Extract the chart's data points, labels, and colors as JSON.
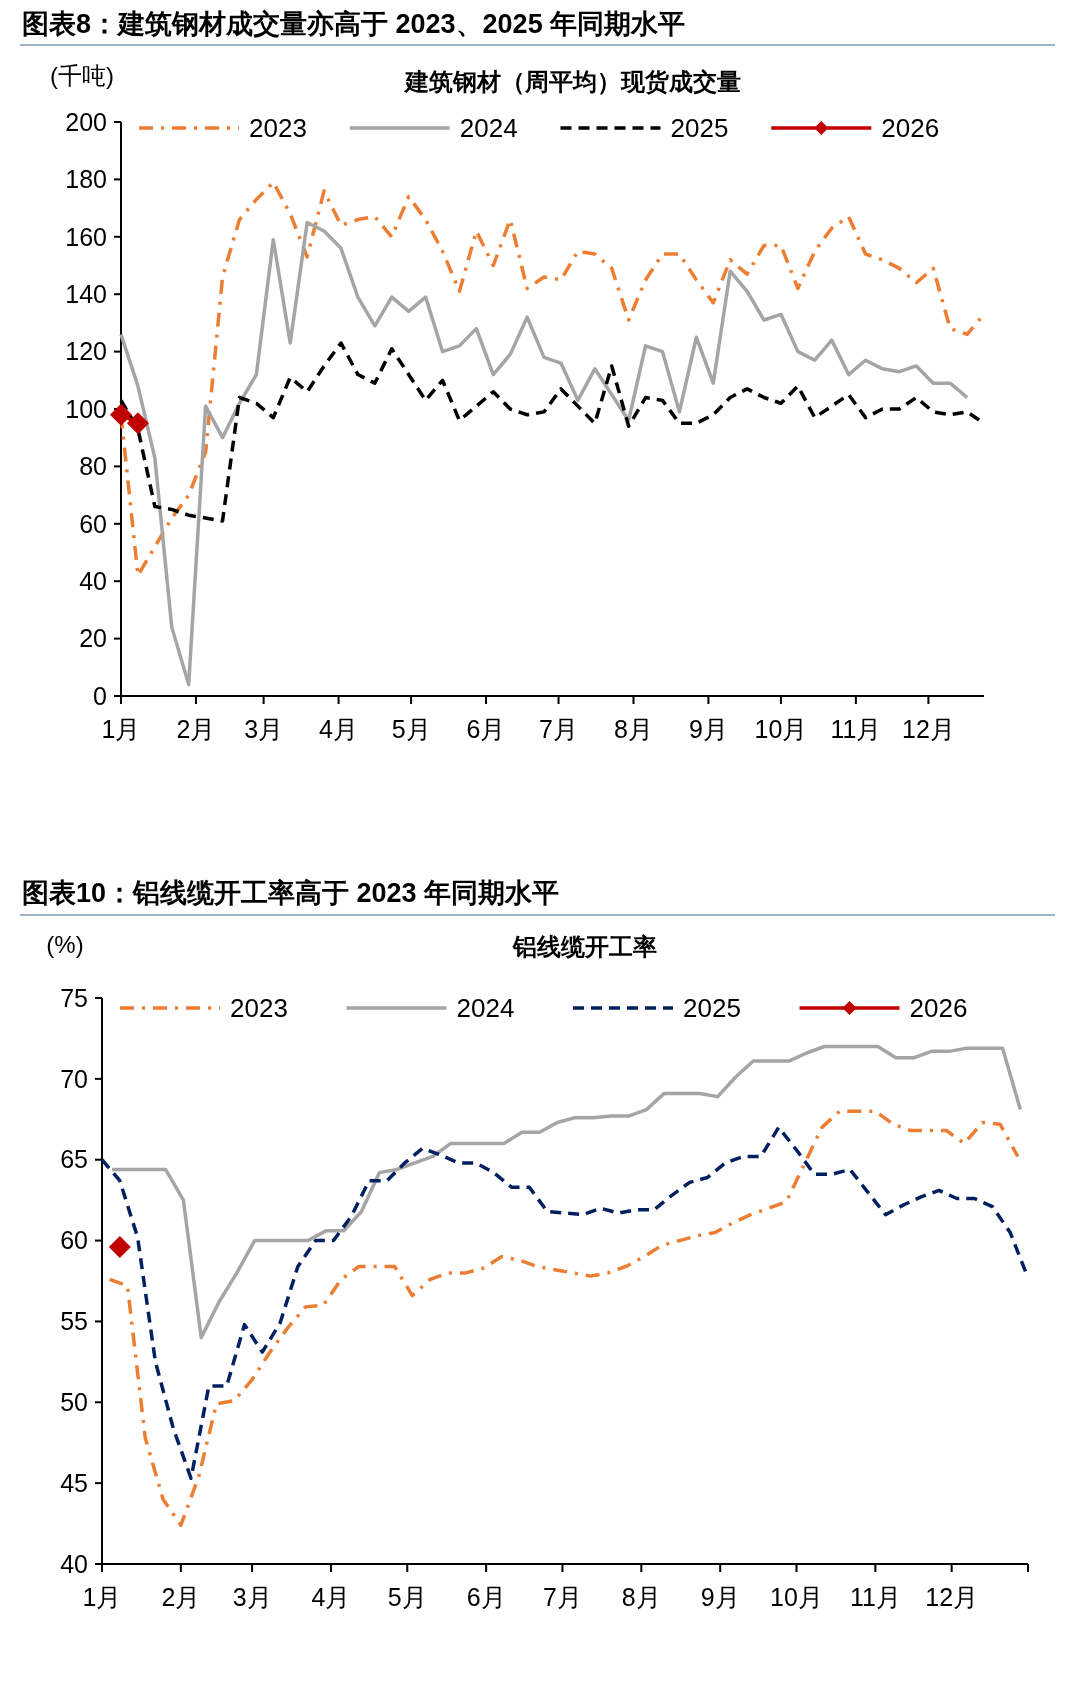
{
  "chart_data": [
    {
      "type": "line",
      "title": "图表8：建筑钢材成交量亦高于 2023、2025 年同期水平",
      "subtitle": "建筑钢材（周平均）现货成交量",
      "ylabel": "(千吨)",
      "x": [
        "--01-01",
        "--01-08",
        "--01-15",
        "--01-22",
        "--01-29",
        "--02-05",
        "--02-12",
        "--02-19",
        "--02-26",
        "--03-05",
        "--03-12",
        "--03-19",
        "--03-26",
        "--04-02",
        "--04-09",
        "--04-16",
        "--04-23",
        "--04-30",
        "--05-07",
        "--05-14",
        "--05-21",
        "--05-28",
        "--06-04",
        "--06-11",
        "--06-18",
        "--06-25",
        "--07-02",
        "--07-09",
        "--07-16",
        "--07-23",
        "--07-30",
        "--08-06",
        "--08-13",
        "--08-20",
        "--08-27",
        "--09-03",
        "--09-10",
        "--09-17",
        "--09-24",
        "--10-01",
        "--10-08",
        "--10-15",
        "--10-22",
        "--10-29",
        "--11-05",
        "--11-12",
        "--11-19",
        "--11-26",
        "--12-03",
        "--12-10",
        "--12-17",
        "--12-24"
      ],
      "xlim": [
        "--01-01",
        "--12-24"
      ],
      "xticks": [
        {
          "value": "--01-01",
          "label": "1月"
        },
        {
          "value": "--02-01",
          "label": "2月"
        },
        {
          "value": "--03-01",
          "label": "3月"
        },
        {
          "value": "--04-01",
          "label": "4月"
        },
        {
          "value": "--05-01",
          "label": "5月"
        },
        {
          "value": "--06-01",
          "label": "6月"
        },
        {
          "value": "--07-01",
          "label": "7月"
        },
        {
          "value": "--08-01",
          "label": "8月"
        },
        {
          "value": "--09-01",
          "label": "9月"
        },
        {
          "value": "--10-01",
          "label": "10月"
        },
        {
          "value": "--11-01",
          "label": "11月"
        },
        {
          "value": "--12-01",
          "label": "12月"
        }
      ],
      "ylim": [
        0,
        200
      ],
      "yticks": [
        0,
        20,
        40,
        60,
        80,
        100,
        120,
        140,
        160,
        180,
        200
      ],
      "legend": "top",
      "series": [
        {
          "name": "2023",
          "color": "#ed7d31",
          "line_style": "dashdot",
          "marker": "none",
          "values": [
            98,
            42,
            52,
            62,
            70,
            85,
            146,
            166,
            173,
            179,
            168,
            153,
            176,
            164,
            166,
            167,
            160,
            174,
            166,
            155,
            141,
            162,
            150,
            166,
            142,
            146,
            145,
            155,
            154,
            149,
            131,
            145,
            154,
            154,
            145,
            137,
            152,
            147,
            157,
            157,
            142,
            155,
            163,
            167,
            154,
            152,
            149,
            144,
            149,
            128,
            126,
            133
          ]
        },
        {
          "name": "2024",
          "color": "#a5a5a5",
          "line_style": "solid",
          "marker": "none",
          "values": [
            126,
            108,
            83,
            24,
            4,
            101,
            90,
            102,
            112,
            159,
            123,
            165,
            162,
            156,
            139,
            129,
            139,
            134,
            139,
            120,
            122,
            128,
            112,
            119,
            132,
            118,
            116,
            103,
            114,
            105,
            96,
            122,
            120,
            99,
            125,
            109,
            148,
            141,
            131,
            133,
            120,
            117,
            124,
            112,
            117,
            114,
            113,
            115,
            109,
            109,
            104,
            null
          ]
        },
        {
          "name": "2025",
          "color": "#000000",
          "line_style": "dashed",
          "marker": "none",
          "values": [
            103,
            93,
            66,
            65,
            63,
            62,
            61,
            104,
            102,
            97,
            111,
            106,
            115,
            123,
            112,
            109,
            121,
            112,
            103,
            110,
            96,
            101,
            106,
            100,
            98,
            99,
            107,
            101,
            95,
            115,
            94,
            104,
            103,
            95,
            95,
            98,
            104,
            107,
            104,
            102,
            108,
            97,
            101,
            105,
            97,
            100,
            100,
            104,
            99,
            98,
            99,
            95
          ]
        },
        {
          "name": "2026",
          "color": "#c00000",
          "line_style": "solid",
          "marker": "diamond",
          "x": [
            "--01-01",
            "--01-08"
          ],
          "values": [
            98,
            95
          ]
        }
      ]
    },
    {
      "type": "line",
      "title": "图表10：铝线缆开工率高于 2023 年同期水平",
      "subtitle": "铝线缆开工率",
      "ylabel": "(%)",
      "xlim": [
        "--01-01",
        "--12-31"
      ],
      "xticks": [
        {
          "value": "--01-01",
          "label": "1月"
        },
        {
          "value": "--02-01",
          "label": "2月"
        },
        {
          "value": "--03-01",
          "label": "3月"
        },
        {
          "value": "--04-01",
          "label": "4月"
        },
        {
          "value": "--05-01",
          "label": "5月"
        },
        {
          "value": "--06-01",
          "label": "6月"
        },
        {
          "value": "--07-01",
          "label": "7月"
        },
        {
          "value": "--08-01",
          "label": "8月"
        },
        {
          "value": "--09-01",
          "label": "9月"
        },
        {
          "value": "--10-01",
          "label": "10月"
        },
        {
          "value": "--11-01",
          "label": "11月"
        },
        {
          "value": "--12-01",
          "label": "12月"
        },
        {
          "value": "--12-31",
          "label": null
        }
      ],
      "ylim": [
        40,
        75
      ],
      "yticks": [
        40,
        45,
        50,
        55,
        60,
        65,
        70,
        75
      ],
      "legend": "top",
      "series": [
        {
          "name": "2023",
          "color": "#ed7d31",
          "line_style": "dashdot",
          "marker": "none",
          "x": [
            "--01-04",
            "--01-11",
            "--01-18",
            "--01-25",
            "--02-01",
            "--02-08",
            "--02-15",
            "--02-22",
            "--03-01",
            "--03-08",
            "--03-15",
            "--03-22",
            "--03-29",
            "--04-05",
            "--04-12",
            "--04-19",
            "--04-26",
            "--05-03",
            "--05-10",
            "--05-17",
            "--05-24",
            "--05-31",
            "--06-07",
            "--06-14",
            "--06-21",
            "--06-28",
            "--07-05",
            "--07-12",
            "--07-19",
            "--07-26",
            "--08-02",
            "--08-09",
            "--08-16",
            "--08-23",
            "--08-30",
            "--09-06",
            "--09-13",
            "--09-20",
            "--09-27",
            "--10-04",
            "--10-11",
            "--10-18",
            "--10-25",
            "--11-01",
            "--11-08",
            "--11-15",
            "--11-22",
            "--11-29",
            "--12-06",
            "--12-13",
            "--12-20",
            "--12-27"
          ],
          "values": [
            57.6,
            57.2,
            47.8,
            44.0,
            42.4,
            45.4,
            49.9,
            50.1,
            51.4,
            53.1,
            54.6,
            55.9,
            56.0,
            57.6,
            58.4,
            58.4,
            58.4,
            56.6,
            57.6,
            58.0,
            58.0,
            58.3,
            59.0,
            58.8,
            58.4,
            58.2,
            58.0,
            57.8,
            58.0,
            58.4,
            59.0,
            59.7,
            60.0,
            60.3,
            60.5,
            61.1,
            61.6,
            62.0,
            62.4,
            64.7,
            67.0,
            68.0,
            68.0,
            68.0,
            67.2,
            66.8,
            66.8,
            66.8,
            66.0,
            67.3,
            67.2,
            65.2
          ]
        },
        {
          "name": "2024",
          "color": "#a5a5a5",
          "line_style": "solid",
          "marker": "none",
          "x": [
            "--01-05",
            "--01-12",
            "--01-19",
            "--01-26",
            "--02-02",
            "--02-09",
            "--02-16",
            "--02-23",
            "--03-02",
            "--03-09",
            "--03-16",
            "--03-23",
            "--03-30",
            "--04-06",
            "--04-13",
            "--04-20",
            "--04-27",
            "--05-04",
            "--05-11",
            "--05-18",
            "--05-25",
            "--06-01",
            "--06-08",
            "--06-15",
            "--06-22",
            "--06-29",
            "--07-06",
            "--07-13",
            "--07-20",
            "--07-27",
            "--08-03",
            "--08-10",
            "--08-17",
            "--08-24",
            "--08-31",
            "--09-07",
            "--09-14",
            "--09-21",
            "--09-28",
            "--10-05",
            "--10-12",
            "--10-19",
            "--10-26",
            "--11-02",
            "--11-09",
            "--11-16",
            "--11-23",
            "--11-30",
            "--12-07",
            "--12-14",
            "--12-21",
            "--12-28"
          ],
          "values": [
            64.4,
            64.4,
            64.4,
            64.4,
            62.5,
            54.0,
            56.2,
            58.0,
            60.0,
            60.0,
            60.0,
            60.0,
            60.6,
            60.6,
            61.8,
            64.2,
            64.4,
            64.8,
            65.2,
            66.0,
            66.0,
            66.0,
            66.0,
            66.7,
            66.7,
            67.3,
            67.6,
            67.6,
            67.7,
            67.7,
            68.1,
            69.1,
            69.1,
            69.1,
            68.9,
            70.1,
            71.1,
            71.1,
            71.1,
            71.6,
            72.0,
            72.0,
            72.0,
            72.0,
            71.3,
            71.3,
            71.7,
            71.7,
            71.9,
            71.9,
            71.9,
            68.1
          ]
        },
        {
          "name": "2025",
          "color": "#002060",
          "line_style": "dashed",
          "marker": "none",
          "x": [
            "--01-01",
            "--01-08",
            "--01-15",
            "--01-22",
            "--01-29",
            "--02-05",
            "--02-12",
            "--02-19",
            "--02-26",
            "--03-05",
            "--03-12",
            "--03-19",
            "--03-26",
            "--04-02",
            "--04-09",
            "--04-16",
            "--04-23",
            "--04-30",
            "--05-07",
            "--05-14",
            "--05-21",
            "--05-28",
            "--06-04",
            "--06-11",
            "--06-18",
            "--06-25",
            "--07-02",
            "--07-09",
            "--07-16",
            "--07-23",
            "--07-30",
            "--08-06",
            "--08-13",
            "--08-20",
            "--08-27",
            "--09-03",
            "--09-10",
            "--09-17",
            "--09-24",
            "--10-01",
            "--10-08",
            "--10-15",
            "--10-22",
            "--10-29",
            "--11-05",
            "--11-12",
            "--11-19",
            "--11-26",
            "--12-03",
            "--12-10",
            "--12-17",
            "--12-24",
            "--12-31"
          ],
          "values": [
            65.0,
            63.7,
            60.2,
            52.5,
            48.4,
            45.3,
            51.0,
            51.0,
            54.8,
            53.1,
            54.9,
            58.4,
            60.0,
            60.0,
            61.5,
            63.7,
            63.7,
            64.8,
            65.7,
            65.3,
            64.8,
            64.8,
            64.2,
            63.3,
            63.3,
            61.8,
            61.7,
            61.6,
            62.0,
            61.7,
            61.9,
            61.9,
            62.8,
            63.6,
            63.9,
            64.8,
            65.2,
            65.2,
            67.0,
            65.6,
            64.1,
            64.1,
            64.4,
            63.0,
            61.6,
            62.2,
            62.7,
            63.1,
            62.6,
            62.6,
            62.1,
            60.5,
            57.7
          ]
        },
        {
          "name": "2026",
          "color": "#c00000",
          "line_style": "solid",
          "marker": "diamond",
          "x": [
            "--01-08"
          ],
          "values": [
            59.6
          ]
        }
      ]
    }
  ]
}
